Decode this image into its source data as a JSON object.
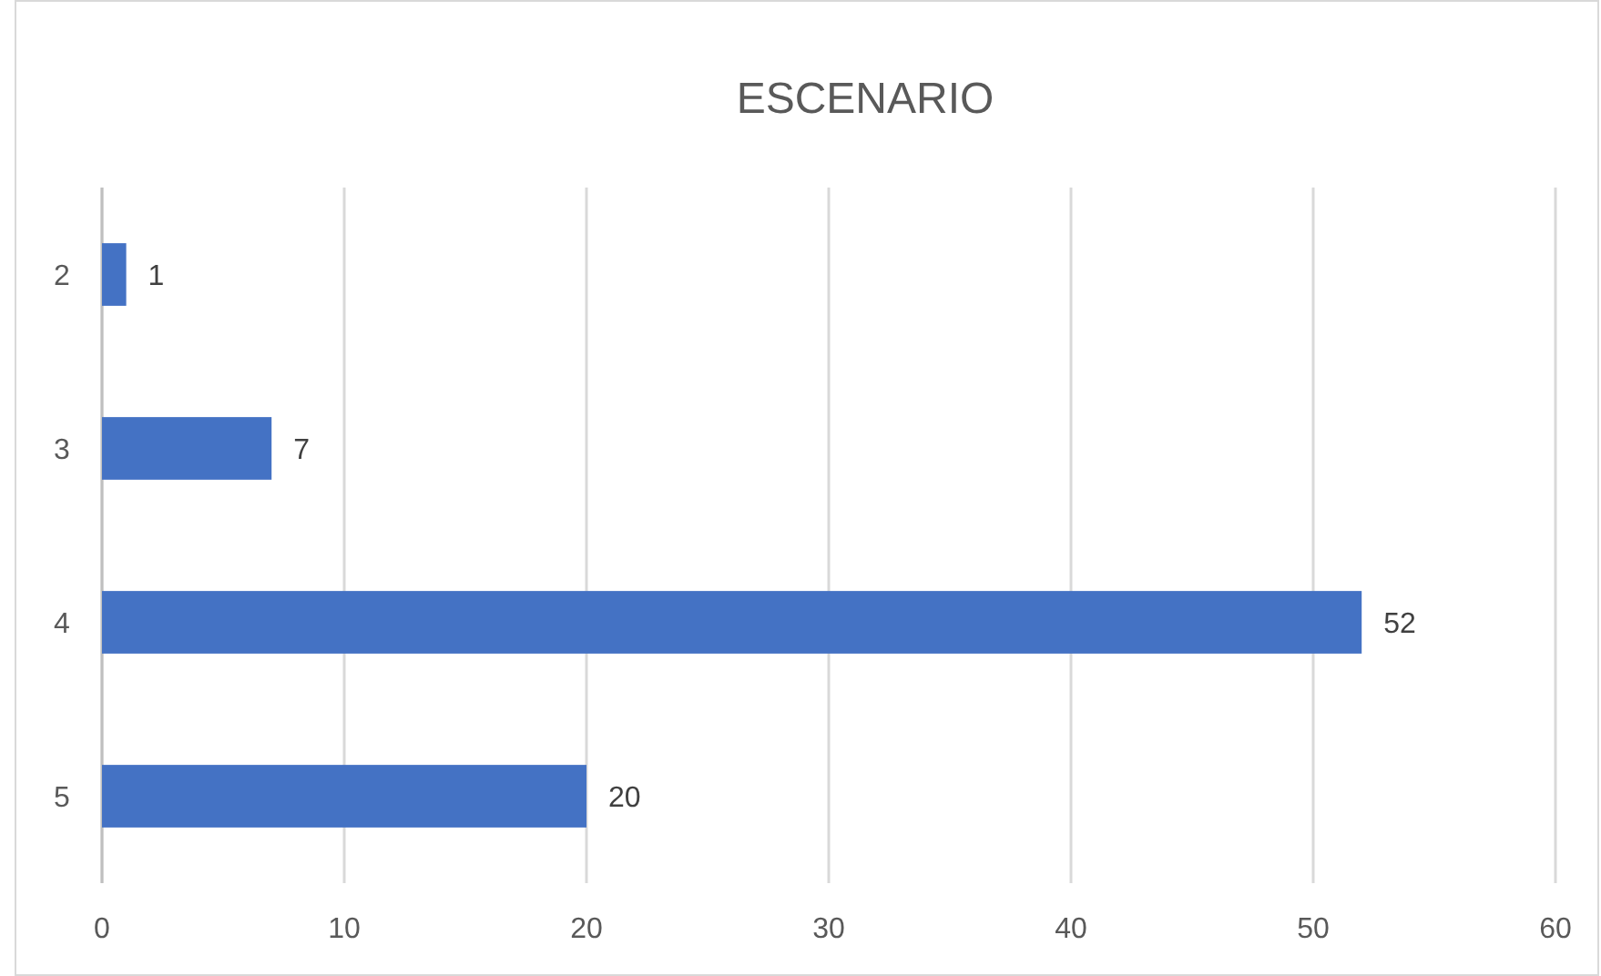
{
  "chart_data": {
    "type": "bar",
    "title": "ESCENARIO",
    "orientation": "horizontal",
    "categories": [
      "2",
      "3",
      "4",
      "5"
    ],
    "values": [
      1,
      7,
      52,
      20
    ],
    "color": "#4472c4",
    "data_labels": true,
    "xlim": [
      0,
      60
    ],
    "xticks": [
      0,
      10,
      20,
      30,
      40,
      50,
      60
    ],
    "grid": "x"
  }
}
